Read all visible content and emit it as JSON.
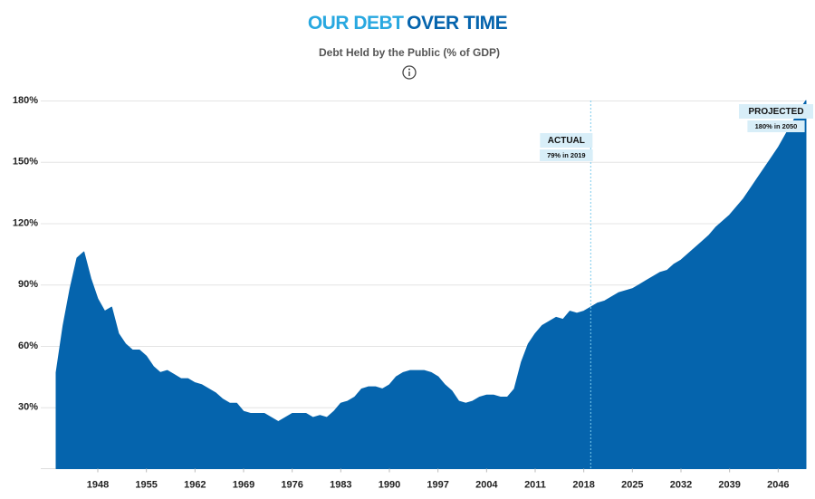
{
  "chart_data": {
    "type": "area",
    "title": [
      "OUR DEBT",
      "OVER TIME"
    ],
    "subtitle": "Debt Held by the Public (% of GDP)",
    "x": [
      1942,
      1943,
      1944,
      1945,
      1946,
      1947,
      1948,
      1949,
      1950,
      1951,
      1952,
      1953,
      1954,
      1955,
      1956,
      1957,
      1958,
      1959,
      1960,
      1961,
      1962,
      1963,
      1964,
      1965,
      1966,
      1967,
      1968,
      1969,
      1970,
      1971,
      1972,
      1973,
      1974,
      1975,
      1976,
      1977,
      1978,
      1979,
      1980,
      1981,
      1982,
      1983,
      1984,
      1985,
      1986,
      1987,
      1988,
      1989,
      1990,
      1991,
      1992,
      1993,
      1994,
      1995,
      1996,
      1997,
      1998,
      1999,
      2000,
      2001,
      2002,
      2003,
      2004,
      2005,
      2006,
      2007,
      2008,
      2009,
      2010,
      2011,
      2012,
      2013,
      2014,
      2015,
      2016,
      2017,
      2018,
      2019,
      2020,
      2021,
      2022,
      2023,
      2024,
      2025,
      2026,
      2027,
      2028,
      2029,
      2030,
      2031,
      2032,
      2033,
      2034,
      2035,
      2036,
      2037,
      2038,
      2039,
      2040,
      2041,
      2042,
      2043,
      2044,
      2045,
      2046,
      2047,
      2048,
      2049,
      2050
    ],
    "values": [
      47,
      70,
      88,
      103,
      106,
      93,
      83,
      77,
      79,
      66,
      61,
      58,
      58,
      55,
      50,
      47,
      48,
      46,
      44,
      44,
      42,
      41,
      39,
      37,
      34,
      32,
      32,
      28,
      27,
      27,
      27,
      25,
      23,
      25,
      27,
      27,
      27,
      25,
      26,
      25,
      28,
      32,
      33,
      35,
      39,
      40,
      40,
      39,
      41,
      45,
      47,
      48,
      48,
      48,
      47,
      45,
      41,
      38,
      33,
      32,
      33,
      35,
      36,
      36,
      35,
      35,
      39,
      52,
      61,
      66,
      70,
      72,
      74,
      73,
      77,
      76,
      77,
      79,
      81,
      82,
      84,
      86,
      87,
      88,
      90,
      92,
      94,
      96,
      97,
      100,
      102,
      105,
      108,
      111,
      114,
      118,
      121,
      124,
      128,
      132,
      137,
      142,
      147,
      152,
      157,
      163,
      169,
      175,
      180
    ],
    "color": "#0564ad",
    "xlim": [
      1942,
      2050
    ],
    "xticks": [
      1948,
      1955,
      1962,
      1969,
      1976,
      1983,
      1990,
      1997,
      2004,
      2011,
      2018,
      2025,
      2032,
      2039,
      2046
    ],
    "ylim": [
      0,
      180
    ],
    "yticks": [
      {
        "value": 30,
        "label": "30%"
      },
      {
        "value": 60,
        "label": "60%"
      },
      {
        "value": 90,
        "label": "90%"
      },
      {
        "value": 120,
        "label": "120%"
      },
      {
        "value": 150,
        "label": "150%"
      },
      {
        "value": 180,
        "label": "180%"
      }
    ],
    "grid": true,
    "divider_x": 2019,
    "annotations": [
      {
        "title": "ACTUAL",
        "text": "79% in 2019"
      },
      {
        "title": "PROJECTED",
        "text": "180% in 2050"
      }
    ]
  }
}
